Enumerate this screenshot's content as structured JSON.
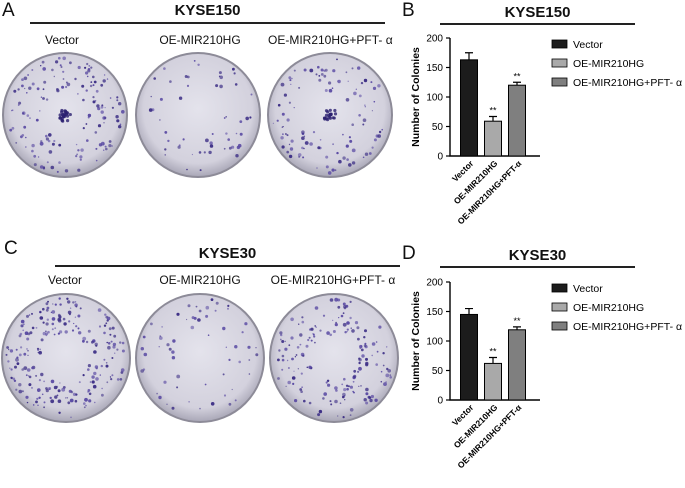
{
  "panels": {
    "A": {
      "letter": "A",
      "cell_line": "KYSE150",
      "conditions": [
        "Vector",
        "OE-MIR210HG",
        "OE-MIR210HG+PFT- α"
      ]
    },
    "B": {
      "letter": "B",
      "title": "KYSE150"
    },
    "C": {
      "letter": "C",
      "cell_line": "KYSE30",
      "conditions": [
        "Vector",
        "OE-MIR210HG",
        "OE-MIR210HG+PFT- α"
      ]
    },
    "D": {
      "letter": "D",
      "title": "KYSE30"
    }
  },
  "chart_data": [
    {
      "type": "bar",
      "title": "KYSE150",
      "ylabel": "Number of Colonies",
      "xlabel": "",
      "categories": [
        "Vector",
        "OE-MIR210HG",
        "OE-MIR210HG+PFT-α"
      ],
      "values": [
        163,
        59,
        120
      ],
      "errors": [
        12,
        8,
        5
      ],
      "significance": [
        "",
        "**",
        "**"
      ],
      "ylim": [
        0,
        200
      ],
      "yticks": [
        0,
        50,
        100,
        150,
        200
      ],
      "legend": [
        "Vector",
        "OE-MIR210HG",
        "OE-MIR210HG+PFT- α"
      ],
      "legend_position": "right",
      "colors": [
        "#1c1c1c",
        "#a9a9a9",
        "#7f7f7f"
      ]
    },
    {
      "type": "bar",
      "title": "KYSE30",
      "ylabel": "Number of Colonies",
      "xlabel": "",
      "categories": [
        "Vector",
        "OE-MIR210HG",
        "OE-MIR210HG+PFT-α"
      ],
      "values": [
        145,
        62,
        119
      ],
      "errors": [
        10,
        10,
        5
      ],
      "significance": [
        "",
        "**",
        "**"
      ],
      "ylim": [
        0,
        200
      ],
      "yticks": [
        0,
        50,
        100,
        150,
        200
      ],
      "legend": [
        "Vector",
        "OE-MIR210HG",
        "OE-MIR210HG+PFT- α"
      ],
      "legend_position": "right",
      "colors": [
        "#1c1c1c",
        "#a9a9a9",
        "#7f7f7f"
      ]
    }
  ]
}
